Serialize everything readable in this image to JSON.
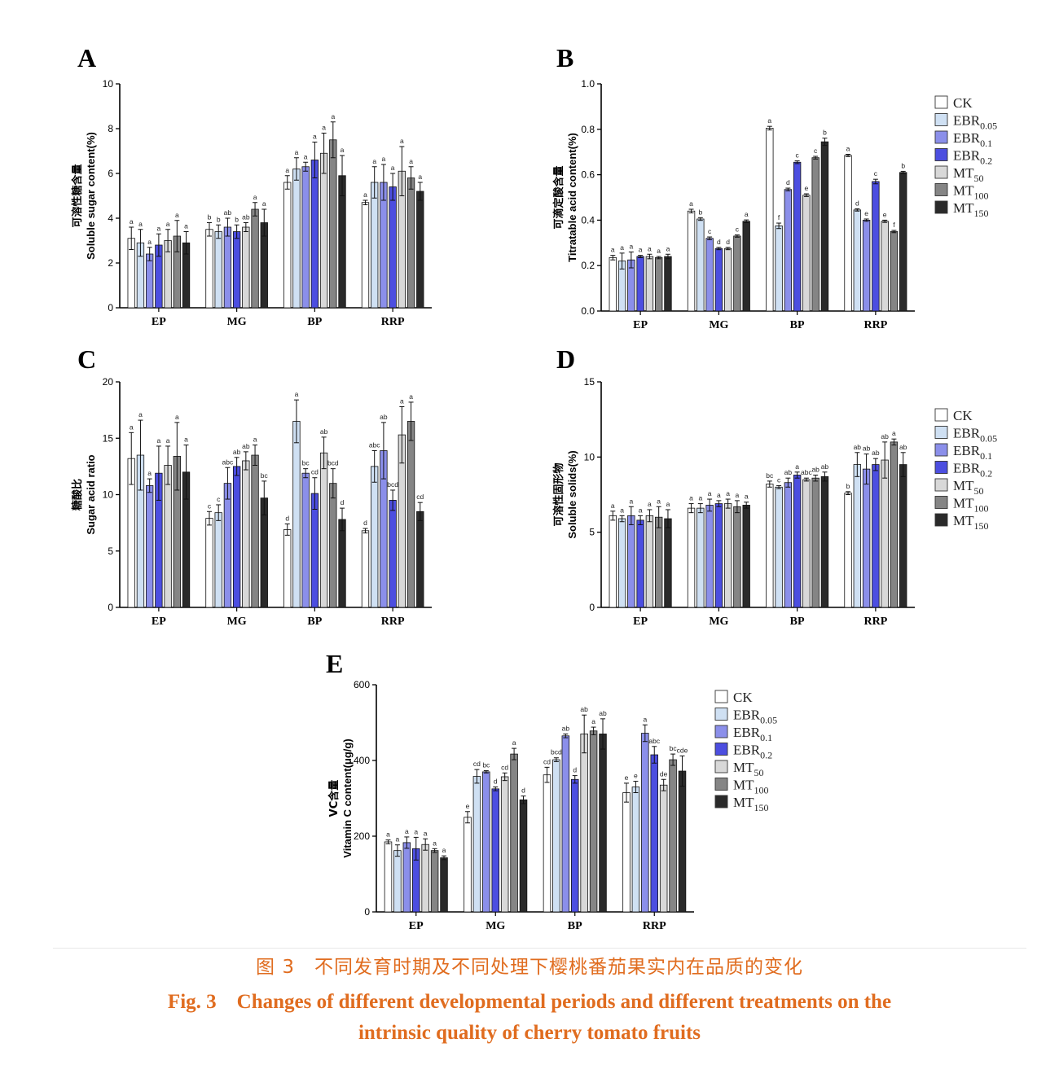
{
  "series": [
    {
      "name": "CK",
      "sub": "",
      "color": "#ffffff"
    },
    {
      "name": "EBR",
      "sub": "0.05",
      "color": "#cfe0f3"
    },
    {
      "name": "EBR",
      "sub": "0.1",
      "color": "#8b8fea"
    },
    {
      "name": "EBR",
      "sub": "0.2",
      "color": "#4c4ee0"
    },
    {
      "name": "MT",
      "sub": "50",
      "color": "#d8d8d8"
    },
    {
      "name": "MT",
      "sub": "100",
      "color": "#858585"
    },
    {
      "name": "MT",
      "sub": "150",
      "color": "#2a2a2a"
    }
  ],
  "categories": [
    "EP",
    "MG",
    "BP",
    "RRP"
  ],
  "chart_data": [
    {
      "panel": "A",
      "type": "bar",
      "ylabel_cn": "可溶性糖含量",
      "ylabel_en": "Soluble sugar content(%)",
      "ylim": [
        0,
        10
      ],
      "yticks": [
        0,
        2,
        4,
        6,
        8,
        10
      ],
      "tick_decimals": 0,
      "categories": [
        "EP",
        "MG",
        "BP",
        "RRP"
      ],
      "values": [
        [
          3.1,
          2.9,
          2.4,
          2.8,
          3.0,
          3.2,
          2.9
        ],
        [
          3.5,
          3.4,
          3.6,
          3.4,
          3.6,
          4.4,
          3.8
        ],
        [
          5.6,
          6.2,
          6.3,
          6.6,
          6.9,
          7.5,
          5.9
        ],
        [
          4.7,
          5.6,
          5.6,
          5.4,
          6.1,
          5.8,
          5.2
        ]
      ],
      "errors": [
        [
          0.5,
          0.6,
          0.3,
          0.5,
          0.5,
          0.7,
          0.5
        ],
        [
          0.3,
          0.3,
          0.4,
          0.3,
          0.2,
          0.3,
          0.6
        ],
        [
          0.3,
          0.5,
          0.2,
          0.8,
          0.9,
          0.8,
          0.9
        ],
        [
          0.1,
          0.7,
          0.8,
          0.6,
          1.1,
          0.5,
          0.4
        ]
      ],
      "letters": [
        [
          "a",
          "a",
          "a",
          "a",
          "a",
          "a",
          "a"
        ],
        [
          "b",
          "b",
          "ab",
          "b",
          "ab",
          "a",
          "a"
        ],
        [
          "a",
          "a",
          "a",
          "a",
          "a",
          "a",
          "a"
        ],
        [
          "a",
          "a",
          "a",
          "a",
          "a",
          "a",
          "a"
        ]
      ],
      "legend": false
    },
    {
      "panel": "B",
      "type": "bar",
      "ylabel_cn": "可滴定酸含量",
      "ylabel_en": "Titratable acid content(%)",
      "ylim": [
        0,
        1.0
      ],
      "yticks": [
        0,
        0.2,
        0.4,
        0.6,
        0.8,
        1.0
      ],
      "tick_decimals": 1,
      "categories": [
        "EP",
        "MG",
        "BP",
        "RRP"
      ],
      "values": [
        [
          0.235,
          0.22,
          0.225,
          0.24,
          0.24,
          0.235,
          0.24
        ],
        [
          0.44,
          0.405,
          0.32,
          0.275,
          0.275,
          0.33,
          0.395
        ],
        [
          0.805,
          0.375,
          0.535,
          0.655,
          0.51,
          0.675,
          0.745
        ],
        [
          0.685,
          0.445,
          0.4,
          0.57,
          0.395,
          0.35,
          0.61
        ]
      ],
      "errors": [
        [
          0.01,
          0.035,
          0.035,
          0.005,
          0.01,
          0.005,
          0.01
        ],
        [
          0.008,
          0.006,
          0.006,
          0.005,
          0.005,
          0.005,
          0.006
        ],
        [
          0.008,
          0.012,
          0.006,
          0.006,
          0.006,
          0.006,
          0.016
        ],
        [
          0.005,
          0.005,
          0.005,
          0.01,
          0.005,
          0.005,
          0.005
        ]
      ],
      "letters": [
        [
          "a",
          "a",
          "a",
          "a",
          "a",
          "a",
          "a"
        ],
        [
          "a",
          "b",
          "c",
          "d",
          "d",
          "c",
          "a"
        ],
        [
          "a",
          "f",
          "d",
          "c",
          "e",
          "c",
          "b"
        ],
        [
          "a",
          "d",
          "e",
          "c",
          "e",
          "f",
          "b"
        ]
      ],
      "legend": true
    },
    {
      "panel": "C",
      "type": "bar",
      "ylabel_cn": "糖酸比",
      "ylabel_en": "Sugar acid ratio",
      "ylim": [
        0,
        20
      ],
      "yticks": [
        0,
        5,
        10,
        15,
        20
      ],
      "tick_decimals": 0,
      "categories": [
        "EP",
        "MG",
        "BP",
        "RRP"
      ],
      "values": [
        [
          13.2,
          13.5,
          10.8,
          11.9,
          12.6,
          13.4,
          12.0
        ],
        [
          7.9,
          8.4,
          11.0,
          12.5,
          13.0,
          13.5,
          9.7
        ],
        [
          6.9,
          16.5,
          11.9,
          10.1,
          13.7,
          11.0,
          7.8
        ],
        [
          6.8,
          12.5,
          13.9,
          9.5,
          15.3,
          16.5,
          8.5
        ]
      ],
      "errors": [
        [
          2.3,
          3.1,
          0.6,
          2.4,
          1.7,
          3.0,
          2.4
        ],
        [
          0.6,
          0.7,
          1.4,
          0.8,
          0.8,
          0.9,
          1.5
        ],
        [
          0.5,
          1.9,
          0.4,
          1.4,
          1.4,
          1.3,
          1.0
        ],
        [
          0.2,
          1.4,
          2.5,
          0.9,
          2.5,
          1.7,
          0.8
        ]
      ],
      "letters": [
        [
          "a",
          "a",
          "a",
          "a",
          "a",
          "a",
          "a"
        ],
        [
          "c",
          "c",
          "abc",
          "ab",
          "ab",
          "a",
          "bc"
        ],
        [
          "d",
          "a",
          "bc",
          "cd",
          "ab",
          "bcd",
          "d"
        ],
        [
          "d",
          "abc",
          "ab",
          "bcd",
          "a",
          "a",
          "cd"
        ]
      ],
      "legend": false
    },
    {
      "panel": "D",
      "type": "bar",
      "ylabel_cn": "可溶性固形物",
      "ylabel_en": "Soluble solids(%)",
      "ylim": [
        0,
        15
      ],
      "yticks": [
        0,
        5,
        10,
        15
      ],
      "tick_decimals": 0,
      "categories": [
        "EP",
        "MG",
        "BP",
        "RRP"
      ],
      "values": [
        [
          6.1,
          5.9,
          6.1,
          5.8,
          6.1,
          6.0,
          5.9
        ],
        [
          6.6,
          6.6,
          6.8,
          6.9,
          6.9,
          6.7,
          6.8
        ],
        [
          8.2,
          8.0,
          8.3,
          8.8,
          8.5,
          8.6,
          8.7
        ],
        [
          7.6,
          9.5,
          9.2,
          9.5,
          9.8,
          11.0,
          9.5
        ]
      ],
      "errors": [
        [
          0.3,
          0.2,
          0.6,
          0.3,
          0.4,
          0.7,
          0.6
        ],
        [
          0.3,
          0.3,
          0.4,
          0.2,
          0.3,
          0.4,
          0.2
        ],
        [
          0.2,
          0.1,
          0.3,
          0.2,
          0.1,
          0.2,
          0.3
        ],
        [
          0.1,
          0.8,
          1.0,
          0.4,
          1.2,
          0.2,
          0.8
        ]
      ],
      "letters": [
        [
          "a",
          "a",
          "a",
          "a",
          "a",
          "a",
          "a"
        ],
        [
          "a",
          "a",
          "a",
          "a",
          "a",
          "a",
          "a"
        ],
        [
          "bc",
          "c",
          "ab",
          "a",
          "abc",
          "ab",
          "ab"
        ],
        [
          "b",
          "ab",
          "ab",
          "ab",
          "ab",
          "a",
          "ab"
        ]
      ],
      "legend": true
    },
    {
      "panel": "E",
      "type": "bar",
      "ylabel_cn": "VC含量",
      "ylabel_en": "Vitamin C content(μg/g)",
      "ylim": [
        0,
        600
      ],
      "yticks": [
        0,
        200,
        400,
        600
      ],
      "tick_decimals": 0,
      "categories": [
        "EP",
        "MG",
        "BP",
        "RRP"
      ],
      "values": [
        [
          185,
          162,
          183,
          167,
          178,
          162,
          143
        ],
        [
          250,
          358,
          370,
          325,
          357,
          417,
          296
        ],
        [
          362,
          402,
          465,
          350,
          470,
          478,
          470
        ],
        [
          315,
          330,
          472,
          415,
          335,
          402,
          372
        ]
      ],
      "errors": [
        [
          5,
          15,
          15,
          30,
          15,
          5,
          5
        ],
        [
          15,
          18,
          3,
          5,
          10,
          15,
          10
        ],
        [
          20,
          5,
          5,
          10,
          50,
          10,
          40
        ],
        [
          25,
          15,
          22,
          22,
          15,
          15,
          40
        ]
      ],
      "letters": [
        [
          "a",
          "a",
          "a",
          "a",
          "a",
          "a",
          "a"
        ],
        [
          "e",
          "cd",
          "bc",
          "d",
          "cd",
          "a",
          "d"
        ],
        [
          "cd",
          "bcd",
          "ab",
          "d",
          "ab",
          "a",
          "ab"
        ],
        [
          "e",
          "e",
          "a",
          "abc",
          "de",
          "bc",
          "cde"
        ]
      ],
      "legend": true
    }
  ],
  "caption": {
    "cn": "图 3　不同发育时期及不同处理下樱桃番茄果实内在品质的变化",
    "en_line1": "Fig. 3　Changes of different developmental periods and different treatments on the",
    "en_line2": "intrinsic quality of cherry tomato fruits"
  }
}
